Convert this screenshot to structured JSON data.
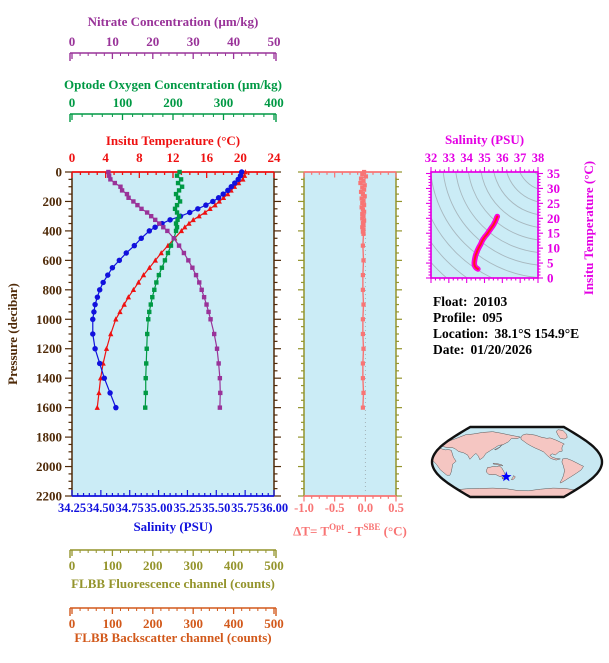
{
  "colors": {
    "nitrate": "#993399",
    "oxygen": "#009944",
    "temperature": "#ee1111",
    "salinity": "#1111dd",
    "pressure": "#4f2a08",
    "delta_t": "#f87474",
    "ts_axis": "#e400e4",
    "ts_curve_outer": "#ff00dd",
    "ts_curve_inner": "#ff1a1a",
    "fluorescence": "#94942c",
    "backscatter": "#d2591b",
    "panel_bg": "#cbecf6",
    "contour": "#a8b8bf",
    "map_land": "#f5c6c2",
    "map_ocean": "#c8e8f2",
    "map_outline": "#111111",
    "marker_star": "#0000ff"
  },
  "axes": {
    "nitrate": {
      "title": "Nitrate Concentration (µm/kg)",
      "min": 0,
      "max": 50,
      "major": [
        0,
        10,
        20,
        30,
        40,
        50
      ],
      "minor_step": 2
    },
    "oxygen": {
      "title": "Optode Oxygen Concentration (µm/kg)",
      "min": 0,
      "max": 400,
      "major": [
        0,
        100,
        200,
        300,
        400
      ],
      "minor_step": 20
    },
    "temperature": {
      "title": "Insitu Temperature (°C)",
      "min": 0,
      "max": 24,
      "major": [
        0,
        4,
        8,
        12,
        16,
        20,
        24
      ],
      "minor_step": 1
    },
    "pressure": {
      "title": "Pressure (decibar)",
      "min": 0,
      "max": 2200,
      "major": [
        0,
        200,
        400,
        600,
        800,
        1000,
        1200,
        1400,
        1600,
        1800,
        2000,
        2200
      ],
      "minor_step": 50
    },
    "salinity": {
      "title": "Salinity (PSU)",
      "min": 34.25,
      "max": 36.0,
      "major": [
        34.25,
        34.5,
        34.75,
        35.0,
        35.25,
        35.5,
        35.75,
        36.0
      ],
      "major_labels": [
        "34.25",
        "34.50",
        "34.75",
        "35.00",
        "35.25",
        "35.50",
        "35.75",
        "36.00"
      ],
      "minor_step": 0.05
    },
    "delta_t": {
      "title_pre": "ΔT= T",
      "title_sup1": "Opt",
      "title_mid": " - T",
      "title_sup2": "SBE",
      "title_post": " (°C)",
      "min": -1.0,
      "max": 0.5,
      "major": [
        -1.0,
        -0.5,
        0.0,
        0.5
      ],
      "major_labels": [
        "-1.0",
        "-0.5",
        "0.0",
        "0.5"
      ],
      "minor_step": 0.125
    },
    "ts_salinity": {
      "title": "Salinity (PSU)",
      "min": 32,
      "max": 38,
      "major": [
        32,
        33,
        34,
        35,
        36,
        37,
        38
      ],
      "minor_step": 0.25
    },
    "ts_temperature": {
      "title": "Insitu Temperature (°C)",
      "min": 0,
      "max": 35.5,
      "major": [
        0,
        5,
        10,
        15,
        20,
        25,
        30,
        35
      ],
      "minor_step": 1
    },
    "fluorescence": {
      "title": "FLBB Fluorescence channel (counts)",
      "min": 0,
      "max": 500,
      "major": [
        0,
        100,
        200,
        300,
        400,
        500
      ],
      "minor_step": 20
    },
    "backscatter": {
      "title": "FLBB Backscatter channel (counts)",
      "min": 0,
      "max": 500,
      "major": [
        0,
        100,
        200,
        300,
        400,
        500
      ],
      "minor_step": 20
    }
  },
  "info": {
    "lines": [
      {
        "label": "Float:",
        "value": "20103"
      },
      {
        "label": "Profile:",
        "value": "095"
      },
      {
        "label": "Location:",
        "value": "38.1°S  154.9°E"
      },
      {
        "label": "Date:",
        "value": "01/20/2026"
      }
    ]
  },
  "chart_data": [
    {
      "id": "profiles",
      "type": "line",
      "ylabel": "Pressure (decibar)",
      "ylim": [
        0,
        2200
      ],
      "grid": false,
      "pressure": [
        0,
        25,
        50,
        75,
        100,
        125,
        150,
        175,
        200,
        225,
        250,
        275,
        300,
        325,
        350,
        375,
        400,
        450,
        500,
        550,
        600,
        650,
        700,
        750,
        800,
        850,
        900,
        950,
        1000,
        1100,
        1200,
        1300,
        1400,
        1500,
        1600
      ],
      "series": [
        {
          "name": "Insitu Temperature (°C)",
          "axis": "temperature",
          "marker": "triangle",
          "values": [
            20.6,
            20.5,
            20.3,
            19.8,
            19.3,
            18.9,
            18.5,
            18.0,
            17.5,
            17.0,
            16.4,
            15.8,
            15.1,
            14.4,
            13.9,
            13.4,
            13.0,
            12.2,
            11.4,
            10.6,
            9.9,
            9.2,
            8.5,
            7.9,
            7.3,
            6.7,
            6.2,
            5.7,
            5.2,
            4.6,
            4.1,
            3.7,
            3.4,
            3.2,
            3.0
          ]
        },
        {
          "name": "Salinity (PSU)",
          "axis": "salinity",
          "marker": "circle",
          "values": [
            35.72,
            35.71,
            35.69,
            35.66,
            35.63,
            35.6,
            35.56,
            35.52,
            35.47,
            35.41,
            35.34,
            35.27,
            35.19,
            35.1,
            35.03,
            34.97,
            34.92,
            34.85,
            34.79,
            34.72,
            34.66,
            34.6,
            34.56,
            34.52,
            34.49,
            34.47,
            34.45,
            34.44,
            34.43,
            34.43,
            34.45,
            34.49,
            34.53,
            34.58,
            34.63
          ]
        },
        {
          "name": "Optode Oxygen Concentration (µm/kg)",
          "axis": "oxygen",
          "marker": "square",
          "values": [
            213,
            208,
            216,
            210,
            218,
            212,
            206,
            210,
            214,
            208,
            204,
            208,
            212,
            209,
            206,
            208,
            206,
            202,
            196,
            190,
            184,
            178,
            172,
            167,
            163,
            159,
            156,
            153,
            151,
            149,
            148,
            147,
            146,
            146,
            145
          ]
        },
        {
          "name": "Nitrate Concentration (µm/kg)",
          "axis": "nitrate",
          "marker": "square",
          "values": [
            9.0,
            9.2,
            9.5,
            10.6,
            12.0,
            12.4,
            13.6,
            14.0,
            15.2,
            16.2,
            17.2,
            18.6,
            19.6,
            20.6,
            21.6,
            22.6,
            23.6,
            25.2,
            26.5,
            27.7,
            28.8,
            29.8,
            30.7,
            31.5,
            32.1,
            32.7,
            33.3,
            33.8,
            34.3,
            35.2,
            35.9,
            36.3,
            36.6,
            36.7,
            36.6
          ]
        }
      ]
    },
    {
      "id": "delta_t",
      "type": "line",
      "xlabel": "ΔT= TOpt - TSBE (°C)",
      "xlim": [
        -1.0,
        0.5
      ],
      "ylim": [
        0,
        2200
      ],
      "zero_line": 0.0,
      "marker": "square",
      "pressure": [
        0,
        15,
        30,
        45,
        60,
        75,
        90,
        105,
        120,
        135,
        150,
        165,
        180,
        195,
        210,
        225,
        240,
        255,
        270,
        285,
        300,
        315,
        330,
        345,
        360,
        375,
        390,
        405,
        420,
        500,
        600,
        700,
        800,
        900,
        1000,
        1100,
        1200,
        1300,
        1400,
        1500,
        1600
      ],
      "values": [
        -0.02,
        -0.05,
        0.01,
        -0.07,
        -0.03,
        -0.08,
        -0.01,
        -0.05,
        -0.02,
        -0.07,
        -0.04,
        -0.01,
        -0.06,
        -0.03,
        -0.05,
        -0.02,
        -0.06,
        -0.04,
        -0.02,
        -0.05,
        -0.03,
        -0.05,
        -0.02,
        -0.04,
        -0.03,
        -0.05,
        -0.03,
        -0.04,
        -0.03,
        -0.04,
        -0.03,
        -0.04,
        -0.04,
        -0.03,
        -0.04,
        -0.04,
        -0.03,
        -0.04,
        -0.04,
        -0.03,
        -0.04
      ]
    },
    {
      "id": "ts_diagram",
      "type": "line",
      "xlabel": "Salinity (PSU)",
      "ylabel": "Insitu Temperature (°C)",
      "xlim": [
        32,
        38
      ],
      "ylim": [
        0,
        35.5
      ],
      "isopycnal_contours": 13,
      "note": "temperature vs salinity curve uses the profiles series values"
    },
    {
      "id": "float_location_map",
      "type": "map",
      "projection": "robinson-like, pacific centered",
      "marker": {
        "lat": -38.1,
        "lon": 154.9,
        "symbol": "star"
      }
    }
  ]
}
